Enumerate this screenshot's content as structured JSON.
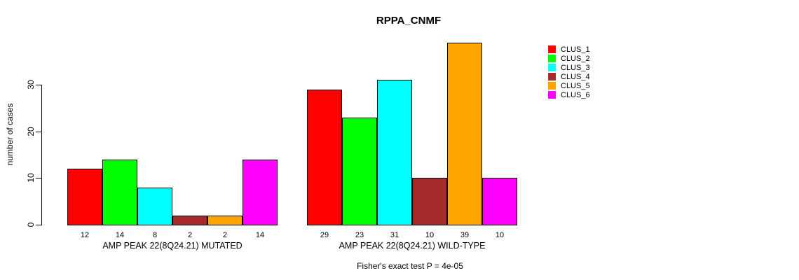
{
  "chart_data": {
    "type": "bar",
    "title": "RPPA_CNMF",
    "ylabel": "number of cases",
    "yticks": [
      0,
      10,
      20,
      30
    ],
    "ylim": [
      0,
      39
    ],
    "grid": false,
    "legend_position": "right-outside",
    "clusters": [
      {
        "name": "CLUS_1",
        "color": "#FF0000"
      },
      {
        "name": "CLUS_2",
        "color": "#00FF00"
      },
      {
        "name": "CLUS_3",
        "color": "#00FFFF"
      },
      {
        "name": "CLUS_4",
        "color": "#A52A2A"
      },
      {
        "name": "CLUS_5",
        "color": "#FFA500"
      },
      {
        "name": "CLUS_6",
        "color": "#FF00FF"
      }
    ],
    "groups": [
      {
        "label": "AMP PEAK 22(8Q24.21) MUTATED",
        "values": [
          12,
          14,
          8,
          2,
          2,
          14
        ]
      },
      {
        "label": "AMP PEAK 22(8Q24.21) WILD-TYPE",
        "values": [
          29,
          23,
          31,
          10,
          39,
          10
        ]
      }
    ],
    "annotation": "Fisher's exact test P = 4e-05"
  }
}
